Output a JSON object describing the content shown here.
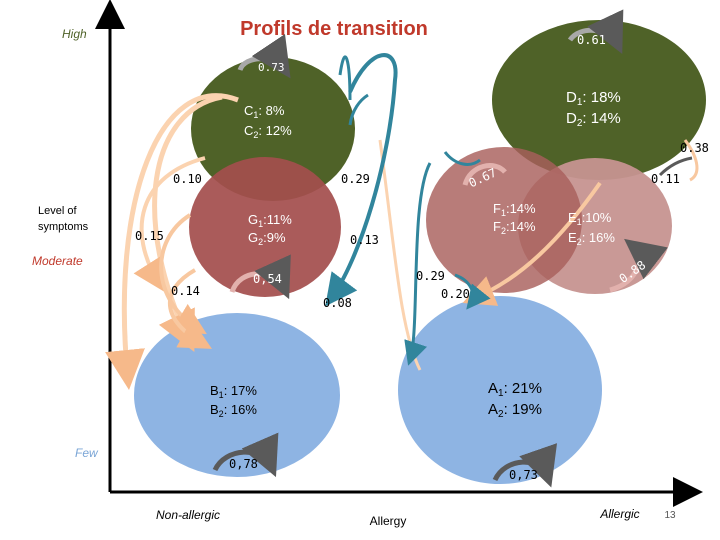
{
  "title": "Profils de transition",
  "y_axis": {
    "label_line1": "Level of",
    "label_line2": "symptoms",
    "high": "High",
    "moderate": "Moderate",
    "few": "Few"
  },
  "x_axis": {
    "label": "Allergy",
    "left": "Non-allergic",
    "right": "Allergic"
  },
  "page_number": "13",
  "colors": {
    "dark_green": "#4f6228",
    "rose": "#ac5a58",
    "pink": "#d4a6a4",
    "blue": "#8eb4e3",
    "teal_arrow": "#31859c",
    "peach_arrow": "#fac090",
    "gray_arrow": "#5a5a5a"
  },
  "clusters": {
    "C": {
      "line1_label": "C",
      "line1_sub": "1",
      "line1_val": ": 8%",
      "line2_label": "C",
      "line2_sub": "2",
      "line2_val": ": 12%"
    },
    "D": {
      "line1_label": "D",
      "line1_sub": "1",
      "line1_val": ": 18%",
      "line2_label": "D",
      "line2_sub": "2",
      "line2_val": ": 14%"
    },
    "G": {
      "line1_label": "G",
      "line1_sub": "1",
      "line1_val": ":11%",
      "line2_label": "G",
      "line2_sub": "2",
      "line2_val": ":9%"
    },
    "F": {
      "line1_label": "F",
      "line1_sub": "1",
      "line1_val": ":14%",
      "line2_label": "F",
      "line2_sub": "2",
      "line2_val": ":14%"
    },
    "E": {
      "line1_label": "E",
      "line1_sub": "1",
      "line1_val": ":10%",
      "line2_label": "E",
      "line2_sub": "2",
      "line2_val": ": 16%"
    },
    "B": {
      "line1_label": "B",
      "line1_sub": "1",
      "line1_val": ": 17%",
      "line2_label": "B",
      "line2_sub": "2",
      "line2_val": ": 16%"
    },
    "A": {
      "line1_label": "A",
      "line1_sub": "1",
      "line1_val": ": 21%",
      "line2_label": "A",
      "line2_sub": "2",
      "line2_val": ": 19%"
    }
  },
  "transitions": {
    "c_stay": "0.73",
    "d_stay": "0.61",
    "d_right": "0.38",
    "g_stay": "0,54",
    "b_stay": "0,78",
    "a_stay": "0,73",
    "e_stay": "0.88",
    "f_stay": "0.67",
    "t_010": "0.10",
    "t_029a": "0.29",
    "t_011": "0.11",
    "t_015": "0.15",
    "t_013": "0.13",
    "t_014": "0.14",
    "t_029b": "0.29",
    "t_020": "0.20",
    "t_008": "0.08"
  }
}
